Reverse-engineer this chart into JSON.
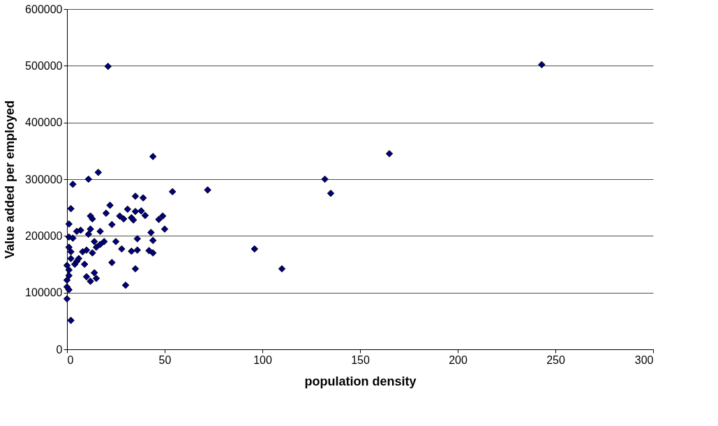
{
  "chart_data": {
    "type": "scatter",
    "xlabel": "population density",
    "ylabel": "Value added per employed",
    "x": [
      243,
      21,
      165,
      44,
      132,
      135,
      72,
      54,
      96,
      110,
      16,
      3,
      11,
      2,
      22,
      1,
      20,
      12,
      13,
      35,
      39,
      31,
      27,
      29,
      33,
      35,
      38,
      40,
      34,
      47,
      49,
      50,
      43,
      44,
      36,
      23,
      25,
      17,
      12,
      7,
      5,
      1,
      3,
      1,
      2,
      2,
      4,
      9,
      8,
      10,
      13,
      15,
      17,
      19,
      14,
      11,
      23,
      28,
      33,
      36,
      42,
      44,
      35,
      30,
      10,
      12,
      14,
      15,
      0,
      1,
      0,
      0,
      1,
      0,
      2,
      5,
      6,
      1
    ],
    "series": [
      {
        "color": "#000080",
        "values": [
          502000,
          499000,
          345000,
          340000,
          300000,
          275000,
          281000,
          278000,
          177000,
          142000,
          312000,
          291000,
          300000,
          248000,
          254000,
          221000,
          240000,
          235000,
          230000,
          270000,
          267000,
          247000,
          235000,
          230000,
          232000,
          243000,
          244000,
          236000,
          228000,
          229000,
          235000,
          212000,
          206000,
          192000,
          195000,
          220000,
          190000,
          208000,
          212000,
          210000,
          208000,
          198000,
          196000,
          180000,
          172000,
          160000,
          150000,
          150000,
          172000,
          175000,
          170000,
          180000,
          185000,
          190000,
          190000,
          203000,
          153000,
          177000,
          173000,
          175000,
          174000,
          170000,
          142000,
          113000,
          128000,
          120000,
          135000,
          125000,
          148000,
          130000,
          122000,
          110000,
          105000,
          89000,
          51000,
          155000,
          160000,
          140000
        ]
      }
    ],
    "xlim": [
      0,
      300
    ],
    "xticks": [
      0,
      50,
      100,
      150,
      200,
      250,
      300
    ],
    "ylim": [
      0,
      600000
    ],
    "yticks": [
      0,
      100000,
      200000,
      300000,
      400000,
      500000,
      600000
    ],
    "grid": "y",
    "marker": "diamond",
    "legend": false
  }
}
